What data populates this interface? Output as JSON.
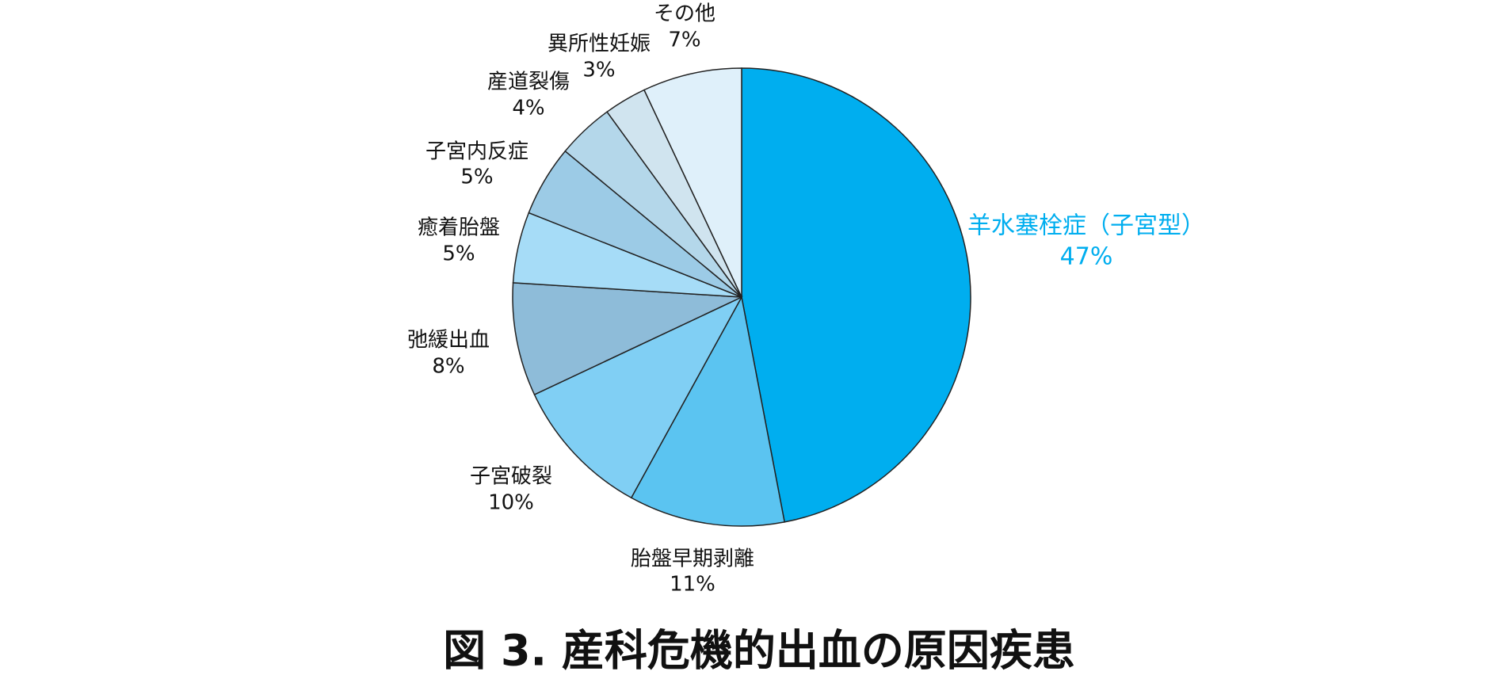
{
  "chart_data": {
    "type": "pie",
    "title": "図 3.  産科危機的出血の原因疾患",
    "categories": [
      "羊水塞栓症（子宮型）",
      "胎盤早期剥離",
      "子宮破裂",
      "弛緩出血",
      "癒着胎盤",
      "子宮内反症",
      "産道裂傷",
      "異所性妊娠",
      "その他"
    ],
    "values": [
      47,
      11,
      10,
      8,
      5,
      5,
      4,
      3,
      7
    ],
    "value_labels": [
      "47%",
      "11%",
      "10%",
      "8%",
      "5%",
      "5%",
      "4%",
      "3%",
      "7%"
    ],
    "colors": [
      "#00aeef",
      "#5bc4f1",
      "#80cff4",
      "#8ebcd9",
      "#a6dcf7",
      "#9ccbe6",
      "#b4d7ea",
      "#d0e4ef",
      "#dff0fa"
    ]
  }
}
